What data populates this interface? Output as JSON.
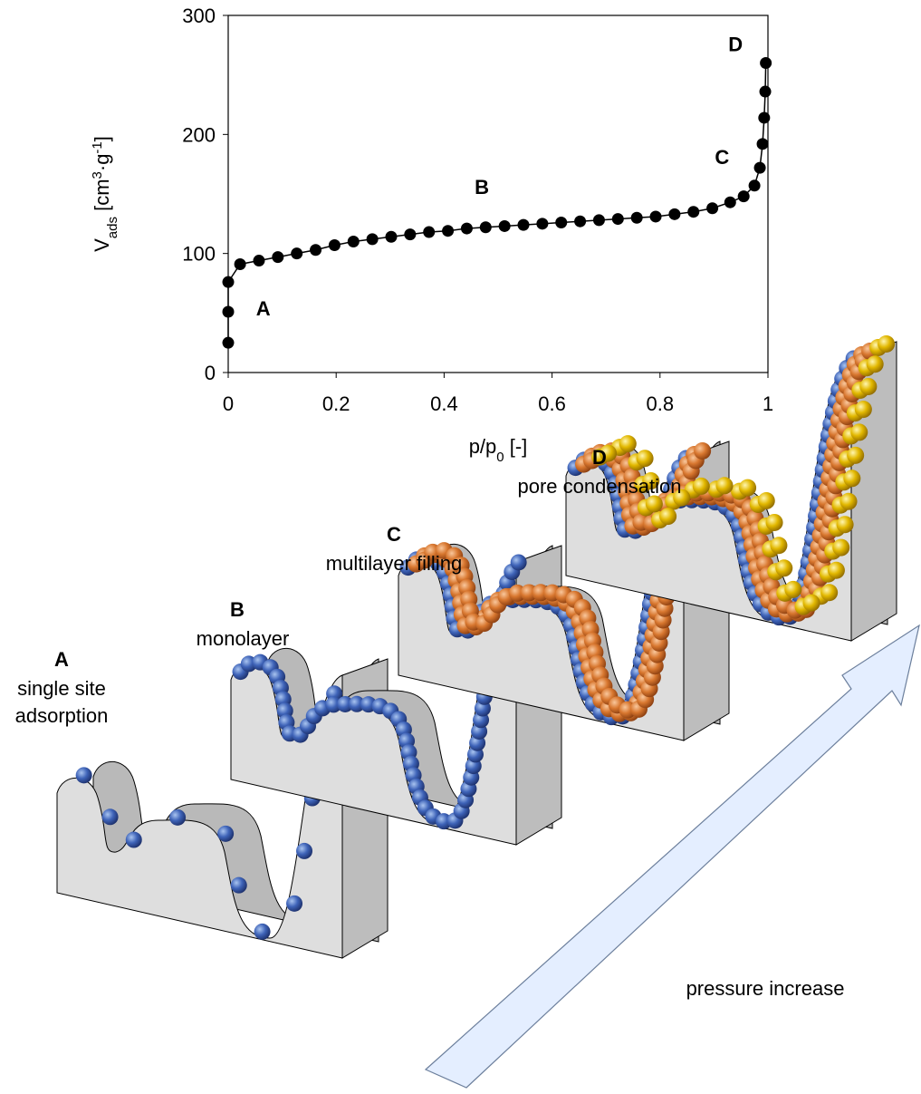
{
  "chart_data": {
    "type": "line",
    "x": [
      0,
      0,
      0,
      0.022,
      0.057,
      0.092,
      0.127,
      0.162,
      0.197,
      0.232,
      0.267,
      0.302,
      0.337,
      0.372,
      0.407,
      0.442,
      0.477,
      0.512,
      0.547,
      0.582,
      0.617,
      0.652,
      0.687,
      0.722,
      0.757,
      0.792,
      0.827,
      0.862,
      0.897,
      0.93,
      0.955,
      0.975,
      0.985,
      0.99,
      0.993,
      0.995,
      0.996
    ],
    "values": [
      25,
      51,
      76,
      91,
      94,
      97,
      100,
      103,
      107,
      110,
      112,
      114,
      116,
      118,
      119,
      121,
      122,
      123,
      124,
      125,
      126,
      127,
      128,
      129,
      130,
      131,
      133,
      135,
      138,
      143,
      148,
      157,
      172,
      192,
      214,
      236,
      260
    ],
    "color": "#000000",
    "xlim": [
      0,
      1
    ],
    "ylim": [
      0,
      300
    ],
    "xticks": [
      0,
      0.2,
      0.4,
      0.6,
      0.8,
      1
    ],
    "yticks": [
      0,
      100,
      200,
      300
    ],
    "x_label": [
      {
        "text": "p/p"
      },
      {
        "text": "0",
        "style": "sub"
      },
      {
        "text": " [-]"
      }
    ],
    "y_label": [
      {
        "text": "V"
      },
      {
        "text": "ads",
        "style": "sub"
      },
      {
        "text": " [cm"
      },
      {
        "text": "3",
        "style": "sup"
      },
      {
        "text": "·g"
      },
      {
        "text": "-1",
        "style": "sup"
      },
      {
        "text": "]"
      }
    ],
    "annotations": [
      {
        "text": "A",
        "x": 0.065,
        "y": 48
      },
      {
        "text": "B",
        "x": 0.47,
        "y": 150
      },
      {
        "text": "C",
        "x": 0.915,
        "y": 175
      },
      {
        "text": "D",
        "x": 0.94,
        "y": 270
      }
    ]
  },
  "diagram": {
    "stages": [
      {
        "letter": "A",
        "lines": [
          "single site",
          "adsorption"
        ]
      },
      {
        "letter": "B",
        "lines": [
          "monolayer"
        ]
      },
      {
        "letter": "C",
        "lines": [
          "multilayer filling"
        ]
      },
      {
        "letter": "D",
        "lines": [
          "pore condensation"
        ]
      }
    ],
    "arrow_label": "pressure increase"
  }
}
